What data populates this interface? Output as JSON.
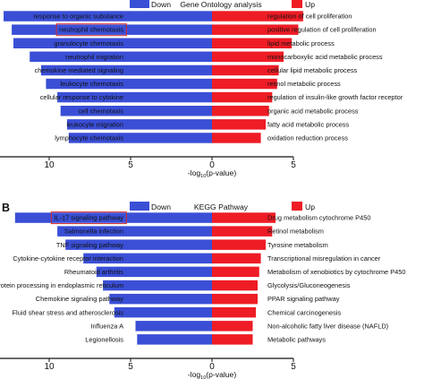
{
  "colors": {
    "down": "#3a4fd6",
    "up": "#ee1c25",
    "highlight": "#d42a2a",
    "axis": "#111111"
  },
  "chart_data": [
    {
      "panel_label": "",
      "title": "Gene Ontology analysis",
      "type": "bar",
      "orientation": "diverging-horizontal",
      "legend": {
        "down": "Down",
        "up": "Up",
        "placement": "top"
      },
      "xlabel": "-log10(p-value)",
      "xticks": [
        "15",
        "10",
        "5",
        "0",
        "5"
      ],
      "xlim": [
        -15,
        5
      ],
      "down": {
        "name": "Down",
        "categories": [
          "response to organic substance",
          "neutrophil chemotaxis",
          "granulocyte chemotaxis",
          "neutrophil migration",
          "chemokine mediated signaling",
          "leukocyte chemotaxis",
          "cellular response to cytokine",
          "cell chemotaxis",
          "leukocyte migration",
          "lymphocyte chemotaxis"
        ],
        "values": [
          12.8,
          12.3,
          12.2,
          11.2,
          10.5,
          10.2,
          9.5,
          9.3,
          8.9,
          8.8
        ]
      },
      "up": {
        "name": "Up",
        "categories": [
          "regulation of cell proliferation",
          "positive regulation of cell proliferation",
          "lipid metabolic process",
          "monocarboxylic acid metabolic process",
          "cellular lipid metabolic process",
          "retinol metabolic process",
          "regulation of insulin-like growth factor receptor",
          "organic acid metabolic process",
          "fatty acid metabolic process",
          "oxidation reduction process"
        ],
        "values": [
          5.6,
          5.3,
          4.9,
          4.4,
          4.1,
          4.0,
          3.7,
          3.5,
          3.3,
          3.0
        ]
      },
      "highlighted": "neutrophil chemotaxis"
    },
    {
      "panel_label": "B",
      "title": "KEGG Pathway",
      "type": "bar",
      "orientation": "diverging-horizontal",
      "legend": {
        "down": "Down",
        "up": "Up",
        "placement": "top"
      },
      "xlabel": "-log10(p-value)",
      "xticks": [
        "15",
        "10",
        "5",
        "0",
        "5"
      ],
      "xlim": [
        -15,
        5
      ],
      "down": {
        "name": "Down",
        "categories": [
          "IL-17 signaling pathway",
          "Salmonella infection",
          "TNF signaling pathway",
          "Cytokine-cytokine receptor interaction",
          "Rheumatoid arthritis",
          "Protein processing in endoplasmic reticulum",
          "Chemokine signaling pathway",
          "Fluid shear stress and atherosclerosis",
          "Influenza A",
          "Legionellosis"
        ],
        "values": [
          12.1,
          9.5,
          9.0,
          7.9,
          7.1,
          6.7,
          6.3,
          6.0,
          4.7,
          4.6
        ]
      },
      "up": {
        "name": "Up",
        "categories": [
          "Drug metabolism cytochrome P450",
          "Retinol metabolism",
          "Tyrosine metabolism",
          "Transcriptional misregulation in cancer",
          "Metabolism of xenobiotics by cytochrome P450",
          "Glycolysis/Gluconeogenesis",
          "PPAR signaling pathway",
          "Chemical carcinogenesis",
          "Non-alcoholic fatty liver disease (NAFLD)",
          "Metabolic pathways"
        ],
        "values": [
          3.9,
          3.7,
          3.3,
          3.0,
          2.9,
          2.8,
          2.8,
          2.7,
          2.5,
          2.5
        ]
      },
      "highlighted": "IL-17 signaling pathway"
    }
  ]
}
